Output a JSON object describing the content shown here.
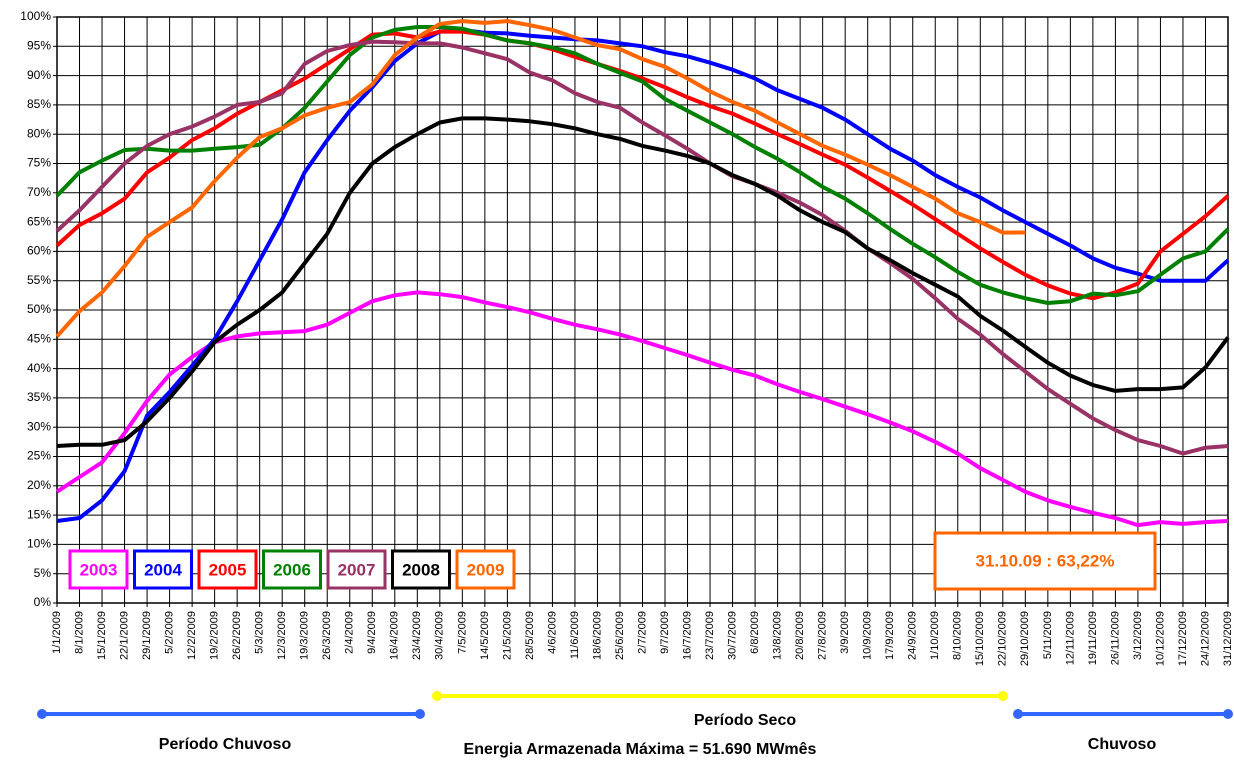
{
  "chart_data": {
    "type": "line",
    "categories": [
      "1/1/2009",
      "8/1/2009",
      "15/1/2009",
      "22/1/2009",
      "29/1/2009",
      "5/2/2009",
      "12/2/2009",
      "19/2/2009",
      "26/2/2009",
      "5/3/2009",
      "12/3/2009",
      "19/3/2009",
      "26/3/2009",
      "2/4/2009",
      "9/4/2009",
      "16/4/2009",
      "23/4/2009",
      "30/4/2009",
      "7/5/2009",
      "14/5/2009",
      "21/5/2009",
      "28/5/2009",
      "4/6/2009",
      "11/6/2009",
      "18/6/2009",
      "25/6/2009",
      "2/7/2009",
      "9/7/2009",
      "16/7/2009",
      "23/7/2009",
      "30/7/2009",
      "6/8/2009",
      "13/8/2009",
      "20/8/2009",
      "27/8/2009",
      "3/9/2009",
      "10/9/2009",
      "17/9/2009",
      "24/9/2009",
      "1/10/2009",
      "8/10/2009",
      "15/10/2009",
      "22/10/2009",
      "29/10/2009",
      "5/11/2009",
      "12/11/2009",
      "19/11/2009",
      "26/11/2009",
      "3/12/2009",
      "10/12/2009",
      "17/12/2009",
      "24/12/2009",
      "31/12/2009"
    ],
    "series": [
      {
        "name": "2003",
        "color": "#ff00ff",
        "values": [
          19,
          21.5,
          24,
          29,
          34.5,
          39,
          42,
          44.5,
          45.5,
          46,
          46.2,
          46.4,
          47.5,
          49.5,
          51.5,
          52.5,
          53,
          52.7,
          52.2,
          51.3,
          50.5,
          49.6,
          48.5,
          47.5,
          46.7,
          45.8,
          44.7,
          43.5,
          42.3,
          41,
          39.8,
          38.8,
          37.3,
          36,
          34.8,
          33.5,
          32.2,
          30.8,
          29.3,
          27.5,
          25.5,
          23,
          21,
          19,
          17.5,
          16.4,
          15.4,
          14.5,
          13.3,
          13.8,
          13.5,
          13.8,
          14
        ]
      },
      {
        "name": "2004",
        "color": "#0000ff",
        "values": [
          14,
          14.5,
          17.5,
          22.5,
          32,
          36,
          40.5,
          45,
          51.5,
          58.5,
          65.5,
          73.5,
          79,
          84,
          88,
          92.5,
          95.5,
          97.5,
          97.8,
          97.3,
          97.2,
          96.8,
          96.5,
          96.2,
          96,
          95.5,
          95,
          94,
          93.3,
          92.2,
          91,
          89.5,
          87.5,
          86,
          84.5,
          82.5,
          80,
          77.5,
          75.5,
          73,
          71,
          69.2,
          67,
          65,
          63,
          61,
          58.8,
          57.2,
          56.2,
          55,
          55,
          55,
          58.5
        ]
      },
      {
        "name": "2005",
        "color": "#ff0000",
        "values": [
          61,
          64.5,
          66.5,
          69,
          73.5,
          76,
          79,
          81,
          83.5,
          85.5,
          87.5,
          89.5,
          92,
          94.5,
          97,
          97.2,
          96.5,
          97.5,
          97.5,
          97,
          96,
          95.5,
          94.5,
          93.2,
          92,
          90.8,
          89.5,
          88,
          86.3,
          84.8,
          83.5,
          81.8,
          80,
          78.3,
          76.5,
          74.8,
          72.6,
          70.3,
          68,
          65.5,
          63,
          60.5,
          58.2,
          56,
          54.2,
          52.8,
          52,
          53,
          54.5,
          60,
          63,
          66,
          69.5
        ]
      },
      {
        "name": "2006",
        "color": "#008000",
        "values": [
          69.5,
          73.5,
          75.5,
          77.3,
          77.5,
          77.2,
          77.2,
          77.5,
          77.8,
          78.2,
          81,
          84.5,
          89,
          93.5,
          96.5,
          97.8,
          98.3,
          98.3,
          98,
          97,
          96,
          95.5,
          94.8,
          93.8,
          92,
          90.5,
          89,
          86,
          84,
          82,
          80,
          77.8,
          75.8,
          73.5,
          71,
          69,
          66.5,
          63.8,
          61.3,
          59,
          56.5,
          54.3,
          53,
          52,
          51.2,
          51.5,
          52.8,
          52.5,
          53.2,
          56,
          58.8,
          60,
          63.8
        ]
      },
      {
        "name": "2007",
        "color": "#993366",
        "values": [
          63.5,
          67,
          71,
          75,
          78,
          80,
          81.3,
          83,
          85,
          85.5,
          87,
          92,
          94.2,
          95.2,
          95.8,
          95.7,
          95.5,
          95.5,
          94.8,
          93.8,
          92.8,
          90.5,
          89.2,
          87,
          85.5,
          84.5,
          82,
          79.8,
          77.5,
          75,
          72.8,
          71.5,
          70,
          68.3,
          66.2,
          63.5,
          60.5,
          58,
          55.3,
          52,
          48.5,
          45.8,
          42.5,
          39.5,
          36.5,
          34,
          31.5,
          29.5,
          27.8,
          26.8,
          25.5,
          26.5,
          26.8
        ]
      },
      {
        "name": "2008",
        "color": "#000000",
        "values": [
          26.8,
          27,
          27,
          27.8,
          31,
          35,
          39.5,
          44.5,
          47.5,
          50,
          53,
          58,
          63,
          70,
          75,
          77.8,
          80,
          82,
          82.7,
          82.7,
          82.5,
          82.2,
          81.7,
          81,
          80,
          79.2,
          78,
          77.2,
          76.3,
          75,
          73,
          71.5,
          69.5,
          67,
          65,
          63.3,
          60.5,
          58.5,
          56.3,
          54.3,
          52.3,
          49,
          46.5,
          43.7,
          41,
          38.8,
          37.2,
          36.2,
          36.5,
          36.5,
          36.8,
          40.2,
          45.3
        ]
      },
      {
        "name": "2009",
        "color": "#ff6600",
        "values": [
          45.5,
          49.8,
          53,
          57.5,
          62.5,
          65,
          67.5,
          72,
          76,
          79.5,
          81,
          83.2,
          84.5,
          85.5,
          88.5,
          93.5,
          96.5,
          98.8,
          99.3,
          99,
          99.3,
          98.6,
          97.8,
          96.5,
          95.2,
          94.5,
          92.8,
          91.5,
          89.5,
          87.3,
          85.5,
          84,
          82,
          80,
          78,
          76.5,
          74.8,
          73,
          71,
          69,
          66.5,
          65,
          63.2,
          63.22,
          null,
          null,
          null,
          null,
          null,
          null,
          null,
          null,
          null
        ]
      }
    ],
    "ylim": [
      0,
      100
    ],
    "yticks": [
      {
        "value": 0,
        "label": "0%"
      },
      {
        "value": 5,
        "label": "5%"
      },
      {
        "value": 10,
        "label": "10%"
      },
      {
        "value": 15,
        "label": "15%"
      },
      {
        "value": 20,
        "label": "20%"
      },
      {
        "value": 25,
        "label": "25%"
      },
      {
        "value": 30,
        "label": "30%"
      },
      {
        "value": 35,
        "label": "35%"
      },
      {
        "value": 40,
        "label": "40%"
      },
      {
        "value": 45,
        "label": "45%"
      },
      {
        "value": 50,
        "label": "50%"
      },
      {
        "value": 55,
        "label": "55%"
      },
      {
        "value": 60,
        "label": "60%"
      },
      {
        "value": 65,
        "label": "65%"
      },
      {
        "value": 70,
        "label": "70%"
      },
      {
        "value": 75,
        "label": "75%"
      },
      {
        "value": 80,
        "label": "80%"
      },
      {
        "value": 85,
        "label": "85%"
      },
      {
        "value": 90,
        "label": "90%"
      },
      {
        "value": 95,
        "label": "95%"
      },
      {
        "value": 100,
        "label": "100%"
      }
    ],
    "grid": true,
    "annotations": [
      "31.10.09 : 63,22%",
      "Período Chuvoso",
      "Período Seco",
      "Energia Armazenada Máxima = 51.690 MWmês",
      "Chuvoso"
    ]
  }
}
